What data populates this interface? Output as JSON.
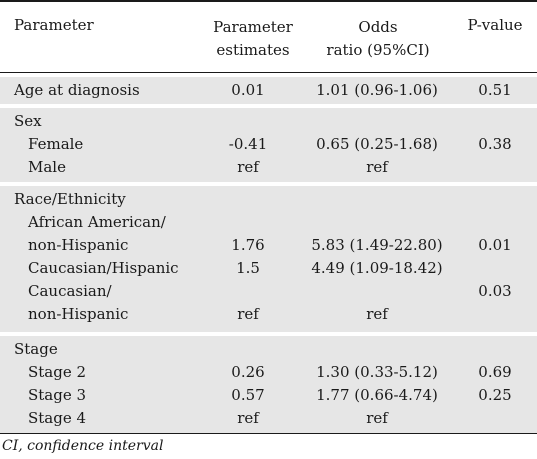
{
  "header": {
    "parameter": "Parameter",
    "estimates_line1": "Parameter",
    "estimates_line2": "estimates",
    "odds_line1": "Odds",
    "odds_line2": "ratio (95%CI)",
    "pvalue": "P-value"
  },
  "age": {
    "label": "Age at diagnosis",
    "estimate": "0.01",
    "or": "1.01 (0.96-1.06)",
    "p": "0.51"
  },
  "sex": {
    "title": "Sex",
    "female": {
      "label": "Female",
      "estimate": "-0.41",
      "or": "0.65 (0.25-1.68)",
      "p": "0.38"
    },
    "male": {
      "label": "Male",
      "estimate": "ref",
      "or": "ref"
    }
  },
  "race": {
    "title": "Race/Ethnicity",
    "aa_line1": "African American/",
    "aa_line2": "non-Hispanic",
    "aa_estimate": "1.76",
    "aa_or": "5.83 (1.49-22.80)",
    "aa_p": "0.01",
    "ch_label": "Caucasian/Hispanic",
    "ch_estimate": "1.5",
    "ch_or": "4.49 (1.09-18.42)",
    "cn_line1": "Caucasian/",
    "cn_p": "0.03",
    "cn_line2": "non-Hispanic",
    "cn_estimate": "ref",
    "cn_or": "ref"
  },
  "stage": {
    "title": "Stage",
    "s2": {
      "label": "Stage 2",
      "estimate": "0.26",
      "or": "1.30 (0.33-5.12)",
      "p": "0.69"
    },
    "s3": {
      "label": "Stage 3",
      "estimate": "0.57",
      "or": "1.77 (0.66-4.74)",
      "p": "0.25"
    },
    "s4": {
      "label": "Stage 4",
      "estimate": "ref",
      "or": "ref"
    }
  },
  "footnote": "CI, confidence interval"
}
